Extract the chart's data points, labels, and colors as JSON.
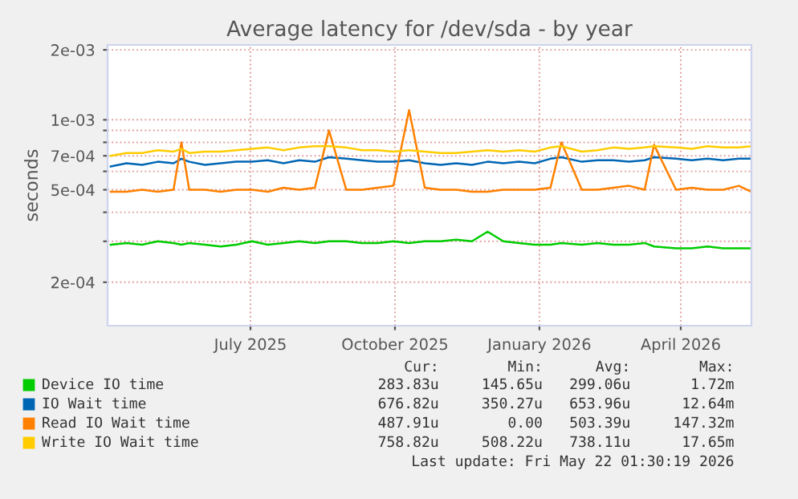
{
  "chart_data": {
    "type": "line",
    "title": "Average latency for /dev/sda - by year",
    "ylabel": "seconds",
    "x": [
      "2025-04-03",
      "2025-04-13",
      "2025-04-23",
      "2025-05-03",
      "2025-05-13",
      "2025-05-18",
      "2025-05-23",
      "2025-06-02",
      "2025-06-12",
      "2025-06-22",
      "2025-07-02",
      "2025-07-12",
      "2025-07-22",
      "2025-08-01",
      "2025-08-11",
      "2025-08-20",
      "2025-08-31",
      "2025-09-10",
      "2025-09-20",
      "2025-09-30",
      "2025-10-10",
      "2025-10-20",
      "2025-10-30",
      "2025-11-09",
      "2025-11-19",
      "2025-11-29",
      "2025-12-09",
      "2025-12-19",
      "2025-12-29",
      "2026-01-08",
      "2026-01-15",
      "2026-01-28",
      "2026-02-07",
      "2026-02-17",
      "2026-02-27",
      "2026-03-09",
      "2026-03-15",
      "2026-03-29",
      "2026-04-08",
      "2026-04-18",
      "2026-04-28",
      "2026-05-08",
      "2026-05-16"
    ],
    "series": [
      {
        "name": "Device IO time",
        "color": "#00cc00",
        "values": [
          0.00029,
          0.000295,
          0.00029,
          0.0003,
          0.000295,
          0.00029,
          0.000295,
          0.00029,
          0.000285,
          0.00029,
          0.0003,
          0.00029,
          0.000295,
          0.0003,
          0.000295,
          0.0003,
          0.0003,
          0.000295,
          0.000295,
          0.0003,
          0.000295,
          0.0003,
          0.0003,
          0.000305,
          0.0003,
          0.00033,
          0.0003,
          0.000295,
          0.00029,
          0.00029,
          0.000295,
          0.00029,
          0.000295,
          0.00029,
          0.00029,
          0.000295,
          0.000285,
          0.00028,
          0.00028,
          0.000285,
          0.00028,
          0.00028,
          0.00028
        ]
      },
      {
        "name": "IO Wait time",
        "color": "#0066b3",
        "values": [
          0.00063,
          0.00065,
          0.00064,
          0.00066,
          0.00065,
          0.00068,
          0.00066,
          0.00064,
          0.00065,
          0.00066,
          0.00066,
          0.00067,
          0.00065,
          0.00067,
          0.00066,
          0.00069,
          0.00068,
          0.00067,
          0.00066,
          0.00066,
          0.00067,
          0.00065,
          0.00064,
          0.00065,
          0.00064,
          0.00066,
          0.00065,
          0.00066,
          0.00065,
          0.00068,
          0.00069,
          0.00066,
          0.00067,
          0.00067,
          0.00066,
          0.00067,
          0.00069,
          0.00068,
          0.00067,
          0.00068,
          0.00067,
          0.00068,
          0.00068
        ]
      },
      {
        "name": "Read IO Wait time",
        "color": "#ff8000",
        "values": [
          0.00049,
          0.00049,
          0.0005,
          0.00049,
          0.0005,
          0.0008,
          0.0005,
          0.0005,
          0.00049,
          0.0005,
          0.0005,
          0.00049,
          0.00051,
          0.0005,
          0.00051,
          0.0009,
          0.0005,
          0.0005,
          0.00051,
          0.00052,
          0.0011,
          0.00051,
          0.0005,
          0.0005,
          0.00049,
          0.00049,
          0.0005,
          0.0005,
          0.0005,
          0.00051,
          0.0008,
          0.0005,
          0.0005,
          0.00051,
          0.00052,
          0.0005,
          0.00078,
          0.0005,
          0.00051,
          0.0005,
          0.0005,
          0.00052,
          0.00049
        ]
      },
      {
        "name": "Write IO Wait time",
        "color": "#ffcc00",
        "values": [
          0.0007,
          0.00072,
          0.00072,
          0.00074,
          0.00073,
          0.00075,
          0.00072,
          0.00073,
          0.00073,
          0.00074,
          0.00075,
          0.00076,
          0.00074,
          0.00076,
          0.00077,
          0.00077,
          0.00076,
          0.00074,
          0.00074,
          0.00073,
          0.00074,
          0.00073,
          0.00072,
          0.00072,
          0.00073,
          0.00074,
          0.00073,
          0.00074,
          0.00073,
          0.00076,
          0.00077,
          0.00073,
          0.00074,
          0.00076,
          0.00075,
          0.00076,
          0.00077,
          0.00076,
          0.00075,
          0.00077,
          0.00076,
          0.00076,
          0.00077
        ]
      }
    ],
    "log": "y",
    "ylim": [
      0.00013,
      0.0021
    ],
    "yticks": [
      {
        "value": 0.0002,
        "label": "2e-04"
      },
      {
        "value": 0.0003,
        "label": null
      },
      {
        "value": 0.0004,
        "label": null
      },
      {
        "value": 0.0005,
        "label": "5e-04"
      },
      {
        "value": 0.0006,
        "label": null
      },
      {
        "value": 0.0007,
        "label": "7e-04"
      },
      {
        "value": 0.0008,
        "label": null
      },
      {
        "value": 0.0009,
        "label": null
      },
      {
        "value": 0.001,
        "label": "1e-03"
      },
      {
        "value": 0.002,
        "label": "2e-03"
      }
    ],
    "xlim": [
      "2025-04-01",
      "2026-05-16"
    ],
    "xticks": [
      {
        "value": "2025-07-01",
        "label": "July 2025"
      },
      {
        "value": "2025-10-01",
        "label": "October 2025"
      },
      {
        "value": "2026-01-01",
        "label": "January 2026"
      },
      {
        "value": "2026-04-01",
        "label": "April 2026"
      }
    ],
    "grid": true,
    "legend": "bottom",
    "annotations": [
      "Cur:",
      "Min:",
      "Avg:",
      "Max:",
      "283.83u",
      "145.65u",
      "299.06u",
      "1.72m",
      "676.82u",
      "350.27u",
      "653.96u",
      "12.64m",
      "487.91u",
      "0.00",
      "503.39u",
      "147.32m",
      "758.82u",
      "508.22u",
      "738.11u",
      "17.65m",
      "Last update: Fri May 22 01:30:19 2026"
    ]
  }
}
